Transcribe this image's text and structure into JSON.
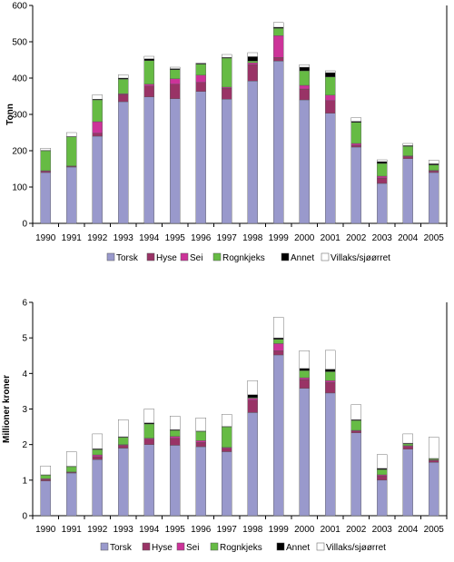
{
  "chart_data": [
    {
      "type": "bar",
      "stacked": true,
      "ylabel": "Tonn",
      "xlabel": "",
      "ylim": [
        0,
        600
      ],
      "yticks": [
        0,
        100,
        200,
        300,
        400,
        500,
        600
      ],
      "categories": [
        "1990",
        "1991",
        "1992",
        "1993",
        "1994",
        "1995",
        "1996",
        "1997",
        "1998",
        "1999",
        "2000",
        "2001",
        "2002",
        "2003",
        "2004",
        "2005"
      ],
      "legend_position": "bottom",
      "series": [
        {
          "name": "Torsk",
          "color": "#9999cc",
          "values": [
            140,
            155,
            240,
            335,
            348,
            343,
            363,
            342,
            392,
            447,
            340,
            303,
            210,
            110,
            178,
            140
          ]
        },
        {
          "name": "Hyse",
          "color": "#993366",
          "values": [
            3,
            2,
            8,
            20,
            30,
            40,
            25,
            30,
            45,
            10,
            30,
            35,
            5,
            15,
            6,
            4
          ]
        },
        {
          "name": "Sei",
          "color": "#cc3399",
          "values": [
            2,
            1,
            32,
            2,
            5,
            15,
            20,
            3,
            5,
            60,
            10,
            15,
            5,
            5,
            2,
            2
          ]
        },
        {
          "name": "Rognkjeks",
          "color": "#66bb44",
          "values": [
            55,
            80,
            60,
            40,
            65,
            25,
            30,
            80,
            5,
            20,
            40,
            50,
            58,
            35,
            26,
            15
          ]
        },
        {
          "name": "Annet",
          "color": "#000000",
          "values": [
            1,
            1,
            2,
            3,
            5,
            3,
            2,
            2,
            12,
            3,
            10,
            12,
            3,
            5,
            2,
            3
          ]
        },
        {
          "name": "Villaks/sjøørret",
          "color": "#ffffff",
          "values": [
            6,
            11,
            12,
            9,
            7,
            4,
            1,
            8,
            11,
            13,
            7,
            5,
            10,
            5,
            6,
            10
          ]
        }
      ]
    },
    {
      "type": "bar",
      "stacked": true,
      "ylabel": "Millioner kroner",
      "xlabel": "",
      "ylim": [
        0,
        6
      ],
      "yticks": [
        0,
        1,
        2,
        3,
        4,
        5,
        6
      ],
      "categories": [
        "1990",
        "1991",
        "1992",
        "1993",
        "1994",
        "1995",
        "1996",
        "1997",
        "1998",
        "1999",
        "2000",
        "2001",
        "2002",
        "2003",
        "2004",
        "2005"
      ],
      "legend_position": "bottom",
      "series": [
        {
          "name": "Torsk",
          "color": "#9999cc",
          "values": [
            0.98,
            1.2,
            1.58,
            1.9,
            2.0,
            1.98,
            1.94,
            1.8,
            2.9,
            4.52,
            3.58,
            3.45,
            2.33,
            1.0,
            1.87,
            1.5
          ]
        },
        {
          "name": "Hyse",
          "color": "#993366",
          "values": [
            0.04,
            0.02,
            0.08,
            0.08,
            0.15,
            0.2,
            0.12,
            0.1,
            0.35,
            0.12,
            0.25,
            0.3,
            0.05,
            0.12,
            0.08,
            0.05
          ]
        },
        {
          "name": "Sei",
          "color": "#cc3399",
          "values": [
            0.02,
            0.01,
            0.05,
            0.02,
            0.03,
            0.05,
            0.05,
            0.02,
            0.05,
            0.2,
            0.05,
            0.05,
            0.02,
            0.03,
            0.02,
            0.02
          ]
        },
        {
          "name": "Rognkjeks",
          "color": "#66bb44",
          "values": [
            0.1,
            0.15,
            0.15,
            0.2,
            0.4,
            0.17,
            0.26,
            0.58,
            0.02,
            0.12,
            0.2,
            0.25,
            0.28,
            0.15,
            0.05,
            0.03
          ]
        },
        {
          "name": "Annet",
          "color": "#000000",
          "values": [
            0.01,
            0.01,
            0.02,
            0.02,
            0.03,
            0.02,
            0.01,
            0.01,
            0.08,
            0.04,
            0.06,
            0.07,
            0.02,
            0.03,
            0.02,
            0.01
          ]
        },
        {
          "name": "Villaks/sjøørret",
          "color": "#ffffff",
          "values": [
            0.25,
            0.41,
            0.42,
            0.48,
            0.39,
            0.38,
            0.37,
            0.34,
            0.4,
            0.58,
            0.5,
            0.53,
            0.42,
            0.39,
            0.26,
            0.6
          ]
        }
      ]
    }
  ]
}
